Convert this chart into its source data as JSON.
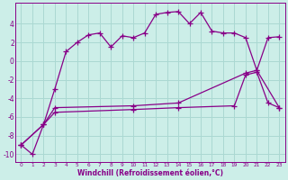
{
  "xlabel": "Windchill (Refroidissement éolien,°C)",
  "bg_color": "#cceee8",
  "grid_color": "#aad8d2",
  "line_color": "#880088",
  "xlim": [
    -0.5,
    23.5
  ],
  "ylim": [
    -10.8,
    6.2
  ],
  "xticks": [
    0,
    1,
    2,
    3,
    4,
    5,
    6,
    7,
    8,
    9,
    10,
    11,
    12,
    13,
    14,
    15,
    16,
    17,
    18,
    19,
    20,
    21,
    22,
    23
  ],
  "yticks": [
    -10,
    -8,
    -6,
    -4,
    -2,
    0,
    2,
    4
  ],
  "line1_x": [
    0,
    1,
    2,
    3,
    4,
    5,
    6,
    7,
    8,
    9,
    10,
    11,
    12,
    13,
    14,
    15,
    16,
    17,
    18,
    19,
    20,
    21,
    22,
    23
  ],
  "line1_y": [
    -9.0,
    -10.0,
    -6.8,
    -3.0,
    1.0,
    2.0,
    2.8,
    3.0,
    1.5,
    2.7,
    2.5,
    3.0,
    5.0,
    5.2,
    5.3,
    4.0,
    5.2,
    3.2,
    3.0,
    3.0,
    2.5,
    -1.0,
    2.5,
    2.6
  ],
  "line2_x": [
    0,
    2,
    3,
    10,
    14,
    20,
    21,
    23
  ],
  "line2_y": [
    -9.0,
    -6.8,
    -5.0,
    -4.8,
    -4.5,
    -1.3,
    -1.0,
    -5.0
  ],
  "line3_x": [
    0,
    2,
    3,
    10,
    14,
    19,
    20,
    21,
    22,
    23
  ],
  "line3_y": [
    -9.0,
    -6.8,
    -5.5,
    -5.2,
    -5.0,
    -4.8,
    -1.5,
    -1.2,
    -4.5,
    -5.0
  ]
}
